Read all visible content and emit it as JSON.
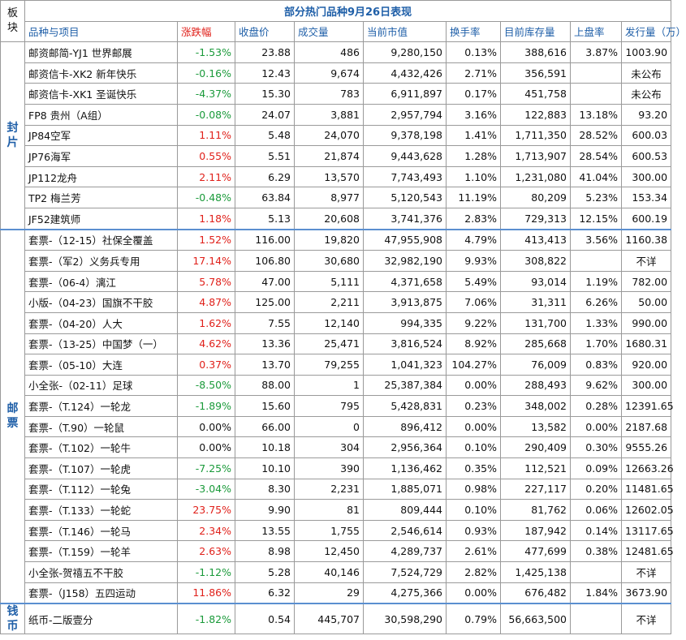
{
  "table": {
    "title": "部分热门品种9月26日表现",
    "board_header": "板\n块",
    "headers": [
      "品种与项目",
      "涨跌幅",
      "收盘价",
      "成交量",
      "当前市值",
      "换手率",
      "目前库存量",
      "上盘率",
      "发行量（万）"
    ],
    "sections": [
      {
        "name": "封\n片",
        "rows": [
          {
            "name": "邮资邮简-YJ1 世界邮展",
            "change": "-1.53%",
            "close": "23.88",
            "volume": "486",
            "market_value": "9,280,150",
            "turnover": "0.13%",
            "inventory": "388,616",
            "listing_rate": "3.87%",
            "issue": "1003.90"
          },
          {
            "name": "邮资信卡-XK2 新年快乐",
            "change": "-0.16%",
            "close": "12.43",
            "volume": "9,674",
            "market_value": "4,432,426",
            "turnover": "2.71%",
            "inventory": "356,591",
            "listing_rate": "",
            "issue": "未公布"
          },
          {
            "name": "邮资信卡-XK1 圣诞快乐",
            "change": "-4.37%",
            "close": "15.30",
            "volume": "783",
            "market_value": "6,911,897",
            "turnover": "0.17%",
            "inventory": "451,758",
            "listing_rate": "",
            "issue": "未公布"
          },
          {
            "name": "FP8 贵州（A组）",
            "change": "-0.08%",
            "close": "24.07",
            "volume": "3,881",
            "market_value": "2,957,794",
            "turnover": "3.16%",
            "inventory": "122,883",
            "listing_rate": "13.18%",
            "issue": "93.20"
          },
          {
            "name": "JP84空军",
            "change": "1.11%",
            "close": "5.48",
            "volume": "24,070",
            "market_value": "9,378,198",
            "turnover": "1.41%",
            "inventory": "1,711,350",
            "listing_rate": "28.52%",
            "issue": "600.03"
          },
          {
            "name": "JP76海军",
            "change": "0.55%",
            "close": "5.51",
            "volume": "21,874",
            "market_value": "9,443,628",
            "turnover": "1.28%",
            "inventory": "1,713,907",
            "listing_rate": "28.54%",
            "issue": "600.53"
          },
          {
            "name": "JP112龙舟",
            "change": "2.11%",
            "close": "6.29",
            "volume": "13,570",
            "market_value": "7,743,493",
            "turnover": "1.10%",
            "inventory": "1,231,080",
            "listing_rate": "41.04%",
            "issue": "300.00"
          },
          {
            "name": "TP2 梅兰芳",
            "change": "-0.48%",
            "close": "63.84",
            "volume": "8,977",
            "market_value": "5,120,543",
            "turnover": "11.19%",
            "inventory": "80,209",
            "listing_rate": "5.23%",
            "issue": "153.34"
          },
          {
            "name": "JF52建筑师",
            "change": "1.18%",
            "close": "5.13",
            "volume": "20,608",
            "market_value": "3,741,376",
            "turnover": "2.83%",
            "inventory": "729,313",
            "listing_rate": "12.15%",
            "issue": "600.19"
          }
        ]
      },
      {
        "name": "邮\n票",
        "rows": [
          {
            "name": "套票-（12-15）社保全覆盖",
            "change": "1.52%",
            "close": "116.00",
            "volume": "19,820",
            "market_value": "47,955,908",
            "turnover": "4.79%",
            "inventory": "413,413",
            "listing_rate": "3.56%",
            "issue": "1160.38"
          },
          {
            "name": "套票-（军2）义务兵专用",
            "change": "17.14%",
            "close": "106.80",
            "volume": "30,680",
            "market_value": "32,982,190",
            "turnover": "9.93%",
            "inventory": "308,822",
            "listing_rate": "",
            "issue": "不详"
          },
          {
            "name": "套票-（06-4）漓江",
            "change": "5.78%",
            "close": "47.00",
            "volume": "5,111",
            "market_value": "4,371,658",
            "turnover": "5.49%",
            "inventory": "93,014",
            "listing_rate": "1.19%",
            "issue": "782.00"
          },
          {
            "name": "小版-（04-23）国旗不干胶",
            "change": "4.87%",
            "close": "125.00",
            "volume": "2,211",
            "market_value": "3,913,875",
            "turnover": "7.06%",
            "inventory": "31,311",
            "listing_rate": "6.26%",
            "issue": "50.00"
          },
          {
            "name": "套票-（04-20）人大",
            "change": "1.62%",
            "close": "7.55",
            "volume": "12,140",
            "market_value": "994,335",
            "turnover": "9.22%",
            "inventory": "131,700",
            "listing_rate": "1.33%",
            "issue": "990.00"
          },
          {
            "name": "套票-（13-25）中国梦（一）",
            "change": "4.62%",
            "close": "13.36",
            "volume": "25,471",
            "market_value": "3,816,524",
            "turnover": "8.92%",
            "inventory": "285,668",
            "listing_rate": "1.70%",
            "issue": "1680.31"
          },
          {
            "name": "套票-（05-10）大连",
            "change": "0.37%",
            "close": "13.70",
            "volume": "79,255",
            "market_value": "1,041,323",
            "turnover": "104.27%",
            "inventory": "76,009",
            "listing_rate": "0.83%",
            "issue": "920.00"
          },
          {
            "name": "小全张-（02-11）足球",
            "change": "-8.50%",
            "close": "88.00",
            "volume": "1",
            "market_value": "25,387,384",
            "turnover": "0.00%",
            "inventory": "288,493",
            "listing_rate": "9.62%",
            "issue": "300.00"
          },
          {
            "name": "套票-（T.124）一轮龙",
            "change": "-1.89%",
            "close": "15.60",
            "volume": "795",
            "market_value": "5,428,831",
            "turnover": "0.23%",
            "inventory": "348,002",
            "listing_rate": "0.28%",
            "issue": "12391.65"
          },
          {
            "name": "套票-（T.90）一轮鼠",
            "change": "0.00%",
            "close": "66.00",
            "volume": "0",
            "market_value": "896,412",
            "turnover": "0.00%",
            "inventory": "13,582",
            "listing_rate": "0.00%",
            "issue": "2187.68"
          },
          {
            "name": "套票-（T.102）一轮牛",
            "change": "0.00%",
            "close": "10.18",
            "volume": "304",
            "market_value": "2,956,364",
            "turnover": "0.10%",
            "inventory": "290,409",
            "listing_rate": "0.30%",
            "issue": "9555.26"
          },
          {
            "name": "套票-（T.107）一轮虎",
            "change": "-7.25%",
            "close": "10.10",
            "volume": "390",
            "market_value": "1,136,462",
            "turnover": "0.35%",
            "inventory": "112,521",
            "listing_rate": "0.09%",
            "issue": "12663.26"
          },
          {
            "name": "套票-（T.112）一轮兔",
            "change": "-3.04%",
            "close": "8.30",
            "volume": "2,231",
            "market_value": "1,885,071",
            "turnover": "0.98%",
            "inventory": "227,117",
            "listing_rate": "0.20%",
            "issue": "11481.65"
          },
          {
            "name": "套票-（T.133）一轮蛇",
            "change": "23.75%",
            "close": "9.90",
            "volume": "81",
            "market_value": "809,444",
            "turnover": "0.10%",
            "inventory": "81,762",
            "listing_rate": "0.06%",
            "issue": "12602.05"
          },
          {
            "name": "套票-（T.146）一轮马",
            "change": "2.34%",
            "close": "13.55",
            "volume": "1,755",
            "market_value": "2,546,614",
            "turnover": "0.93%",
            "inventory": "187,942",
            "listing_rate": "0.14%",
            "issue": "13117.65"
          },
          {
            "name": "套票-（T.159）一轮羊",
            "change": "2.63%",
            "close": "8.98",
            "volume": "12,450",
            "market_value": "4,289,737",
            "turnover": "2.61%",
            "inventory": "477,699",
            "listing_rate": "0.38%",
            "issue": "12481.65"
          },
          {
            "name": "小全张-贺禧五不干胶",
            "change": "-1.12%",
            "close": "5.28",
            "volume": "40,146",
            "market_value": "7,524,729",
            "turnover": "2.82%",
            "inventory": "1,425,138",
            "listing_rate": "",
            "issue": "不详"
          },
          {
            "name": "套票-（J158）五四运动",
            "change": "11.86%",
            "close": "6.32",
            "volume": "29",
            "market_value": "4,275,366",
            "turnover": "0.00%",
            "inventory": "676,482",
            "listing_rate": "1.84%",
            "issue": "3673.90"
          }
        ]
      },
      {
        "name": "钱\n币",
        "rows": [
          {
            "name": "纸币-二版壹分",
            "change": "-1.82%",
            "close": "0.54",
            "volume": "445,707",
            "market_value": "30,598,290",
            "turnover": "0.79%",
            "inventory": "56,663,500",
            "listing_rate": "",
            "issue": "不详"
          }
        ]
      }
    ]
  }
}
